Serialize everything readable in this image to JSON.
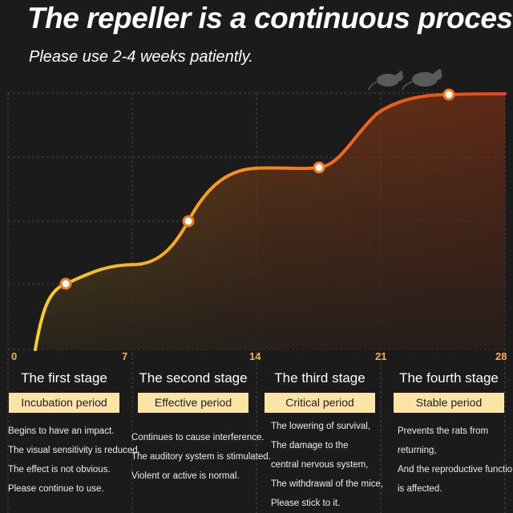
{
  "header": {
    "title": "The repeller is a continuous process.",
    "subtitle": "Please use 2-4 weeks patiently."
  },
  "chart_data": {
    "type": "area",
    "x_ticks": [
      "0",
      "7",
      "14",
      "21",
      "28"
    ],
    "xlim": [
      0,
      28
    ],
    "marked_points": [
      {
        "x": 3,
        "label": ""
      },
      {
        "x": 9.2,
        "label": ""
      },
      {
        "x": 18.4,
        "label": ""
      },
      {
        "x": 25.5,
        "label": ""
      }
    ],
    "grid": true,
    "gradient_colors": [
      "#f6d027",
      "#f7a21e",
      "#f06a1c",
      "#e8441a"
    ],
    "icon": "rats-icon"
  },
  "stages": [
    {
      "name": "The first stage",
      "period": "Incubation period",
      "lines": [
        "Begins to have an impact.",
        "The visual sensitivity is reduced.",
        "The effect is not obvious.",
        "Please continue to use."
      ]
    },
    {
      "name": "The second stage",
      "period": "Effective period",
      "lines": [
        "Continues to cause interference.",
        "The auditory system is stimulated.",
        "Violent or active is normal."
      ]
    },
    {
      "name": "The third stage",
      "period": "Critical period",
      "lines": [
        "The lowering of survival,",
        "The damage to the",
        "central nervous system,",
        "The withdrawal of the mice,",
        "Please stick to it."
      ]
    },
    {
      "name": "The fourth stage",
      "period": "Stable period",
      "lines": [
        "Prevents the rats from",
        "returning,",
        "And the reproductive function",
        "is affected."
      ]
    }
  ]
}
